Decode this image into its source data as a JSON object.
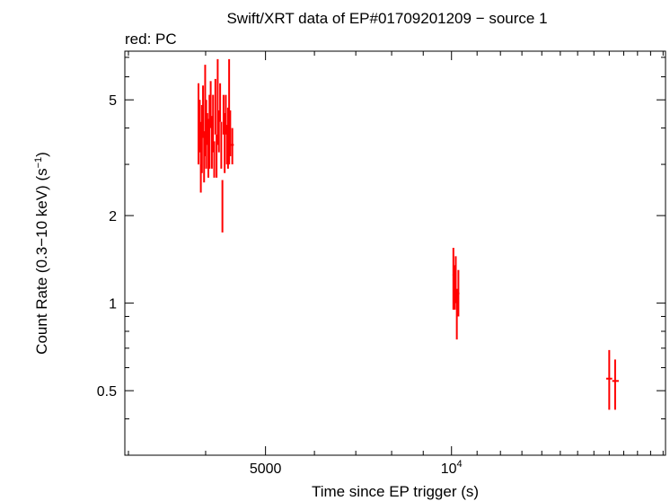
{
  "chart_data": {
    "type": "scatter",
    "title": "Swift/XRT data of EP#01709201209 − source 1",
    "subtitle": "red: PC",
    "xlabel": "Time since EP trigger (s)",
    "ylabel_main": "Count Rate (0.3−10 keV) (s",
    "ylabel_sup": "−1",
    "ylabel_close": ")",
    "x_scale": "log",
    "y_scale": "log",
    "xlim": [
      2960,
      22200
    ],
    "ylim": [
      0.3,
      7.35
    ],
    "x_ticks": [
      {
        "value": 5000,
        "label": "5000"
      },
      {
        "value": 10000,
        "label": "10",
        "sup": "4"
      }
    ],
    "y_ticks": [
      {
        "value": 0.5,
        "label": "0.5"
      },
      {
        "value": 1,
        "label": "1"
      },
      {
        "value": 2,
        "label": "2"
      },
      {
        "value": 5,
        "label": "5"
      }
    ],
    "legend": "none",
    "grid": false,
    "color": "#ff0000",
    "series": [
      {
        "name": "PC",
        "points": [
          {
            "x": 3895,
            "xerr": [
              3885,
              3905
            ],
            "y": 3.9,
            "yerr": [
              3.0,
              5.7
            ]
          },
          {
            "x": 3913,
            "xerr": [
              3905,
              3921
            ],
            "y": 4.4,
            "yerr": [
              3.3,
              5.0
            ]
          },
          {
            "x": 3929,
            "xerr": [
              3921,
              3937
            ],
            "y": 3.4,
            "yerr": [
              2.4,
              4.2
            ]
          },
          {
            "x": 3945,
            "xerr": [
              3937,
              3953
            ],
            "y": 3.7,
            "yerr": [
              2.8,
              4.8
            ]
          },
          {
            "x": 3961,
            "xerr": [
              3953,
              3969
            ],
            "y": 4.8,
            "yerr": [
              3.7,
              5.6
            ]
          },
          {
            "x": 3977,
            "xerr": [
              3969,
              3985
            ],
            "y": 3.2,
            "yerr": [
              2.6,
              3.9
            ]
          },
          {
            "x": 3993,
            "xerr": [
              3985,
              4001
            ],
            "y": 4.2,
            "yerr": [
              3.2,
              6.6
            ]
          },
          {
            "x": 4009,
            "xerr": [
              4001,
              4017
            ],
            "y": 3.3,
            "yerr": [
              2.9,
              5.0
            ]
          },
          {
            "x": 4025,
            "xerr": [
              4017,
              4033
            ],
            "y": 4.0,
            "yerr": [
              3.5,
              4.5
            ]
          },
          {
            "x": 4041,
            "xerr": [
              4033,
              4049
            ],
            "y": 3.3,
            "yerr": [
              2.7,
              4.3
            ]
          },
          {
            "x": 4058,
            "xerr": [
              4049,
              4067
            ],
            "y": 3.5,
            "yerr": [
              2.9,
              5.2
            ]
          },
          {
            "x": 4076,
            "xerr": [
              4067,
              4085
            ],
            "y": 4.9,
            "yerr": [
              4.0,
              5.8
            ]
          },
          {
            "x": 4094,
            "xerr": [
              4085,
              4103
            ],
            "y": 3.6,
            "yerr": [
              2.9,
              4.4
            ]
          },
          {
            "x": 4112,
            "xerr": [
              4103,
              4121
            ],
            "y": 3.9,
            "yerr": [
              3.3,
              5.2
            ]
          },
          {
            "x": 4130,
            "xerr": [
              4121,
              4139
            ],
            "y": 3.1,
            "yerr": [
              2.7,
              3.6
            ]
          },
          {
            "x": 4148,
            "xerr": [
              4139,
              4157
            ],
            "y": 4.6,
            "yerr": [
              3.8,
              5.9
            ]
          },
          {
            "x": 4166,
            "xerr": [
              4157,
              4175
            ],
            "y": 3.2,
            "yerr": [
              2.7,
              3.8
            ]
          },
          {
            "x": 4184,
            "xerr": [
              4175,
              4193
            ],
            "y": 4.2,
            "yerr": [
              3.5,
              6.9
            ]
          },
          {
            "x": 4203,
            "xerr": [
              4193,
              4213
            ],
            "y": 3.9,
            "yerr": [
              3.3,
              4.6
            ]
          },
          {
            "x": 4222,
            "xerr": [
              4213,
              4231
            ],
            "y": 4.9,
            "yerr": [
              4.2,
              5.7
            ]
          },
          {
            "x": 4240,
            "xerr": [
              4231,
              4249
            ],
            "y": 3.5,
            "yerr": [
              2.9,
              4.2
            ]
          },
          {
            "x": 4258,
            "xerr": [
              4249,
              4267
            ],
            "y": 2.2,
            "yerr": [
              1.75,
              2.65
            ]
          },
          {
            "x": 4276,
            "xerr": [
              4267,
              4285
            ],
            "y": 4.4,
            "yerr": [
              3.8,
              5.2
            ]
          },
          {
            "x": 4294,
            "xerr": [
              4285,
              4303
            ],
            "y": 3.6,
            "yerr": [
              2.8,
              4.5
            ]
          },
          {
            "x": 4312,
            "xerr": [
              4303,
              4321
            ],
            "y": 4.4,
            "yerr": [
              3.8,
              5.2
            ]
          },
          {
            "x": 4330,
            "xerr": [
              4321,
              4339
            ],
            "y": 3.5,
            "yerr": [
              3.0,
              4.1
            ]
          },
          {
            "x": 4348,
            "xerr": [
              4339,
              4357
            ],
            "y": 3.8,
            "yerr": [
              2.9,
              4.7
            ]
          },
          {
            "x": 4366,
            "xerr": [
              4357,
              4375
            ],
            "y": 3.5,
            "yerr": [
              3.0,
              6.9
            ]
          },
          {
            "x": 4384,
            "xerr": [
              4375,
              4393
            ],
            "y": 4.0,
            "yerr": [
              3.2,
              4.6
            ]
          },
          {
            "x": 4418,
            "xerr": [
              4393,
              4443
            ],
            "y": 3.5,
            "yerr": [
              3.0,
              4.0
            ]
          },
          {
            "x": 10070,
            "xerr": [
              10040,
              10100
            ],
            "y": 1.25,
            "yerr": [
              0.95,
              1.55
            ]
          },
          {
            "x": 10120,
            "xerr": [
              10100,
              10140
            ],
            "y": 1.05,
            "yerr": [
              0.95,
              1.35
            ]
          },
          {
            "x": 10160,
            "xerr": [
              10140,
              10180
            ],
            "y": 1.2,
            "yerr": [
              1.0,
              1.45
            ]
          },
          {
            "x": 10200,
            "xerr": [
              10180,
              10220
            ],
            "y": 0.98,
            "yerr": [
              0.75,
              1.12
            ]
          },
          {
            "x": 10260,
            "xerr": [
              10220,
              10300
            ],
            "y": 1.08,
            "yerr": [
              0.9,
              1.3
            ]
          },
          {
            "x": 18000,
            "xerr": [
              17800,
              18200
            ],
            "y": 0.55,
            "yerr": [
              0.43,
              0.69
            ]
          },
          {
            "x": 18400,
            "xerr": [
              18200,
              18650
            ],
            "y": 0.54,
            "yerr": [
              0.43,
              0.64
            ]
          }
        ]
      }
    ]
  }
}
